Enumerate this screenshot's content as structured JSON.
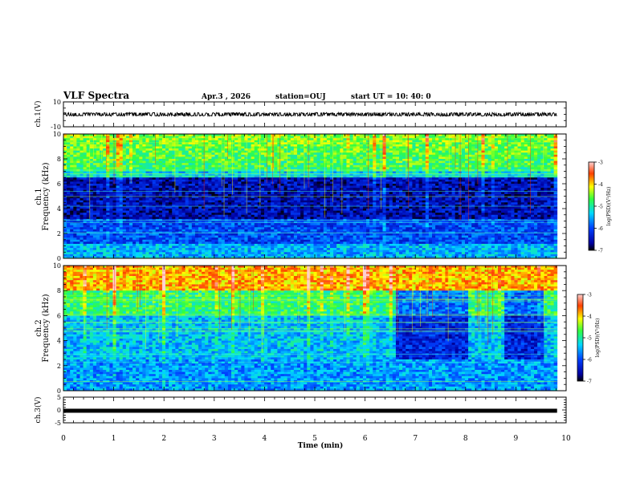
{
  "header": {
    "title": "VLF Spectra",
    "date": "Apr.3  , 2026",
    "station": "station=OUJ",
    "start_ut": "start  UT  =   10: 40: 0"
  },
  "colors": {
    "spectrum_low": "#000033",
    "spectrum_mid": "#00c8ff",
    "spectrum_high": "#ff3000",
    "waveform": "#000000"
  },
  "chart_data": [
    {
      "type": "line",
      "panel": "ch1-waveform",
      "ylabel": "ch.1(V)",
      "ylim": [
        -10,
        10
      ],
      "yticks": [
        "10",
        "-10"
      ],
      "xlim": [
        0,
        10
      ],
      "series": [
        {
          "approx_amplitude": 1.0,
          "center": 0,
          "x_range": [
            0,
            9.82
          ]
        }
      ]
    },
    {
      "type": "heatmap",
      "panel": "ch1-spectrogram",
      "ylabel": "ch.1\nFrequency (kHz)",
      "ylim": [
        0,
        10
      ],
      "yticks": [
        "0",
        "2",
        "4",
        "6",
        "8",
        "10"
      ],
      "xlim": [
        0,
        10
      ],
      "x_range": [
        0,
        9.82
      ],
      "colorbar": {
        "label": "log(PSD)(V²/Hz)",
        "range": [
          -7,
          -3
        ],
        "ticks": [
          "-3",
          "-4",
          "-5",
          "-6",
          "-7"
        ]
      }
    },
    {
      "type": "heatmap",
      "panel": "ch2-spectrogram",
      "ylabel": "ch.2\nFrequency (kHz)",
      "ylim": [
        0,
        10
      ],
      "yticks": [
        "0",
        "2",
        "4",
        "6",
        "8",
        "10"
      ],
      "xlim": [
        0,
        10
      ],
      "x_range": [
        0,
        9.82
      ],
      "colorbar": {
        "label": "log(PSD)(V²/Hz)",
        "range": [
          -7,
          -3
        ],
        "ticks": [
          "-3",
          "-4",
          "-5",
          "-6",
          "-7"
        ]
      }
    },
    {
      "type": "line",
      "panel": "ch3-waveform",
      "ylabel": "ch.3(V)",
      "ylim": [
        -5,
        5
      ],
      "yticks": [
        "5",
        "0",
        "-5"
      ],
      "xlim": [
        0,
        10
      ],
      "series": [
        {
          "approx_value": -0.3,
          "x_range": [
            0,
            9.82
          ]
        }
      ]
    }
  ],
  "xaxis": {
    "label": "Time (min)",
    "ticks": [
      "0",
      "1",
      "2",
      "3",
      "4",
      "5",
      "6",
      "7",
      "8",
      "9",
      "10"
    ]
  }
}
